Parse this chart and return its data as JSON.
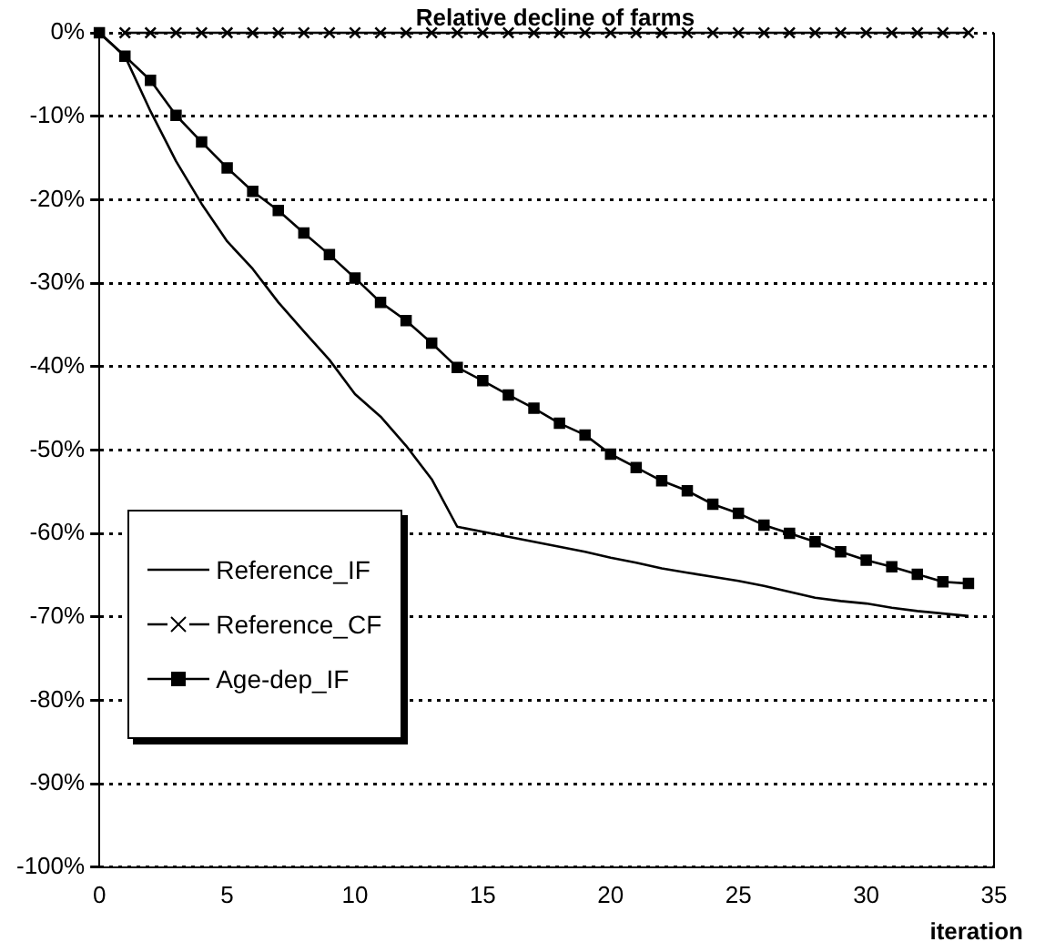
{
  "chart_data": {
    "type": "line",
    "title": "Relative decline of farms",
    "xlabel": "iteration",
    "x": [
      0,
      1,
      2,
      3,
      4,
      5,
      6,
      7,
      8,
      9,
      10,
      11,
      12,
      13,
      14,
      15,
      16,
      17,
      18,
      19,
      20,
      21,
      22,
      23,
      24,
      25,
      26,
      27,
      28,
      29,
      30,
      31,
      32,
      33,
      34
    ],
    "xlim": [
      0,
      35
    ],
    "xticks": [
      0,
      5,
      10,
      15,
      20,
      25,
      30,
      35
    ],
    "ylim": [
      -100,
      0
    ],
    "yticks": [
      {
        "value": -100,
        "label": "-100%"
      },
      {
        "value": -90,
        "label": "-90%"
      },
      {
        "value": -80,
        "label": "-80%"
      },
      {
        "value": -70,
        "label": "-70%"
      },
      {
        "value": -60,
        "label": "-60%"
      },
      {
        "value": -50,
        "label": "-50%"
      },
      {
        "value": -40,
        "label": "-40%"
      },
      {
        "value": -30,
        "label": "-30%"
      },
      {
        "value": -20,
        "label": "-20%"
      },
      {
        "value": -10,
        "label": "-10%"
      },
      {
        "value": 0,
        "label": "0%"
      }
    ],
    "grid": "y",
    "legend": "bottom left",
    "series": [
      {
        "name": "Reference_IF",
        "color": "#000000",
        "marker": "none",
        "values": [
          0,
          -2.8,
          -9.4,
          -15.4,
          -20.5,
          -25,
          -28.3,
          -32.3,
          -35.8,
          -39.2,
          -43.3,
          -46,
          -49.5,
          -53.5,
          -59.2,
          -59.8,
          -60.4,
          -61,
          -61.6,
          -62.2,
          -62.9,
          -63.5,
          -64.2,
          -64.7,
          -65.2,
          -65.7,
          -66.3,
          -67,
          -67.7,
          -68.1,
          -68.4,
          -68.9,
          -69.3,
          -69.6,
          -69.9
        ]
      },
      {
        "name": "Reference_CF",
        "color": "#000000",
        "marker": "cross",
        "values": [
          null,
          0,
          0,
          0,
          0,
          0,
          0,
          0,
          0,
          0,
          0,
          0,
          0,
          0,
          0,
          0,
          0,
          0,
          0,
          0,
          0,
          0,
          0,
          0,
          0,
          0,
          0,
          0,
          0,
          0,
          0,
          0,
          0,
          0,
          0
        ]
      },
      {
        "name": "Age-dep_IF",
        "color": "#000000",
        "marker": "square",
        "values": [
          0,
          -2.8,
          -5.7,
          -9.9,
          -13.1,
          -16.2,
          -19,
          -21.3,
          -24,
          -26.6,
          -29.4,
          -32.3,
          -34.5,
          -37.2,
          -40.1,
          -41.7,
          -43.4,
          -45,
          -46.8,
          -48.2,
          -50.5,
          -52.1,
          -53.7,
          -54.9,
          -56.5,
          -57.6,
          -59,
          -60,
          -61,
          -62.2,
          -63.2,
          -64,
          -64.9,
          -65.8,
          -66
        ]
      }
    ]
  }
}
